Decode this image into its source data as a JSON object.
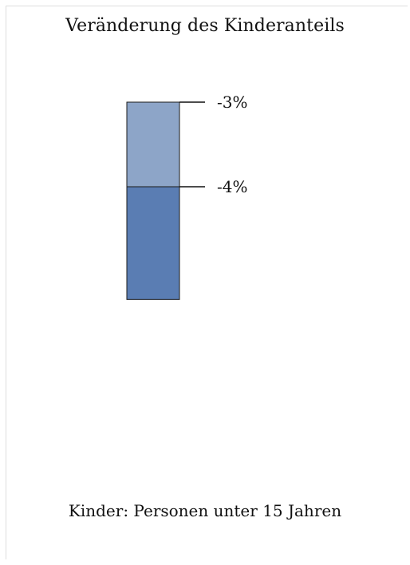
{
  "chart_data": {
    "type": "bar",
    "title": "Veränderung des Kinderanteils",
    "note": "Kinder: Personen unter 15 Jahren",
    "scale_max": 6,
    "segments": [
      {
        "color": "#b8c7de"
      },
      {
        "value": -3,
        "label": "-3%",
        "color": "#8da5c8"
      },
      {
        "value": -4,
        "label": "-4%",
        "color": "#5a7db3"
      }
    ]
  }
}
